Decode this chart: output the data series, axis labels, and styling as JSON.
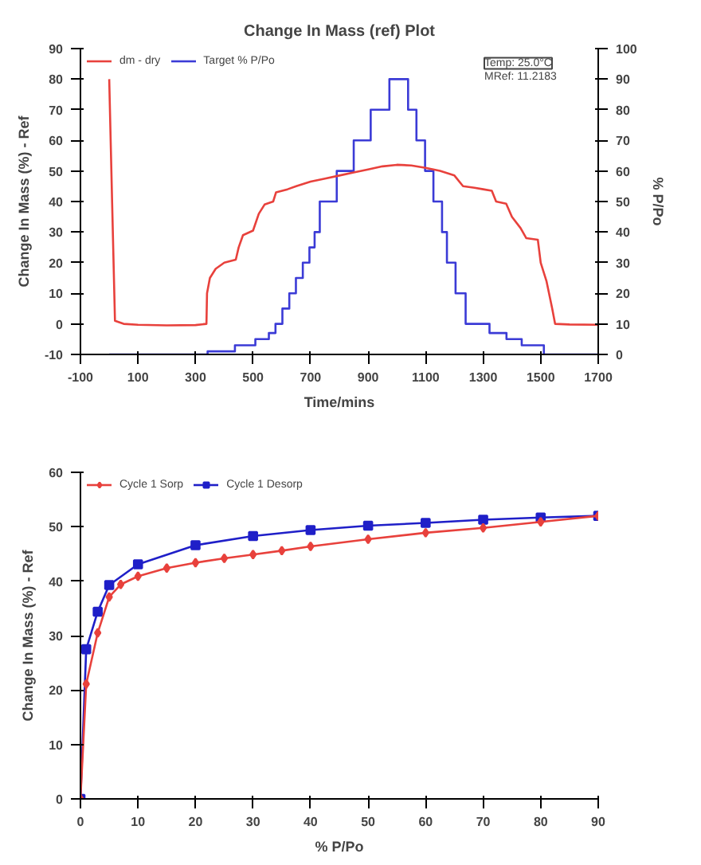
{
  "chart_data": [
    {
      "type": "line",
      "title": "Change In Mass (ref) Plot",
      "xlabel": "Time/mins",
      "ylabel": "Change In Mass (%) - Ref",
      "y2label": "% P/Po",
      "annotations": [
        "Temp: 25.0°C",
        "MRef: 11.2183"
      ],
      "xlim": [
        -100,
        1700
      ],
      "xticks": [
        -100,
        100,
        300,
        500,
        700,
        900,
        1100,
        1300,
        1500,
        1700
      ],
      "ylim": [
        -10,
        90
      ],
      "yticks": [
        -10,
        0,
        10,
        20,
        30,
        40,
        50,
        60,
        70,
        80,
        90
      ],
      "y2lim": [
        0,
        100
      ],
      "y2ticks": [
        0,
        10,
        20,
        30,
        40,
        50,
        60,
        70,
        80,
        90,
        100
      ],
      "grid": false,
      "legend": "top left",
      "series": [
        {
          "name": "dm - dry",
          "color": "#e8413c",
          "type": "line",
          "x": [
            0,
            10,
            20,
            50,
            100,
            200,
            300,
            338,
            340,
            350,
            370,
            400,
            440,
            450,
            465,
            500,
            520,
            540,
            570,
            580,
            620,
            650,
            700,
            750,
            800,
            850,
            900,
            950,
            1000,
            1050,
            1100,
            1150,
            1200,
            1230,
            1270,
            1300,
            1330,
            1345,
            1380,
            1400,
            1430,
            1450,
            1490,
            1500,
            1520,
            1540,
            1550,
            1600,
            1700
          ],
          "values": [
            80,
            40,
            1,
            0,
            -0.3,
            -0.5,
            -0.4,
            0,
            10,
            15,
            18,
            20,
            21,
            25,
            29,
            30.5,
            36,
            39,
            40,
            43,
            44,
            45,
            46.5,
            47.5,
            48.5,
            49.5,
            50.5,
            51.5,
            52,
            51.8,
            51,
            50,
            48.5,
            45,
            44.5,
            44,
            43.5,
            40,
            39.3,
            35,
            31.3,
            28,
            27.5,
            20,
            14,
            5,
            0,
            -0.2,
            -0.3
          ]
        },
        {
          "name": "Target % P/Po",
          "color": "#3b3bd6",
          "type": "step",
          "axis": "y2",
          "x": [
            0,
            342,
            437,
            508,
            555,
            578,
            602,
            626,
            649,
            673,
            696,
            714,
            732,
            791,
            850,
            909,
            974,
            1039,
            1068,
            1098,
            1127,
            1157,
            1174,
            1204,
            1239,
            1322,
            1381,
            1434,
            1511,
            1700
          ],
          "values": [
            0,
            1,
            3,
            5,
            7,
            10,
            15,
            20,
            25,
            30,
            35,
            40,
            50,
            60,
            70,
            80,
            90,
            80,
            70,
            60,
            50,
            40,
            30,
            20,
            10,
            7,
            5,
            3,
            0,
            0
          ]
        }
      ]
    },
    {
      "type": "line",
      "xlabel": "% P/Po",
      "ylabel": "Change In Mass (%) - Ref",
      "xlim": [
        0,
        90
      ],
      "xticks": [
        0,
        10,
        20,
        30,
        40,
        50,
        60,
        70,
        80,
        90
      ],
      "ylim": [
        0,
        60
      ],
      "yticks": [
        0,
        10,
        20,
        30,
        40,
        50,
        60
      ],
      "grid": false,
      "legend": "top left",
      "series": [
        {
          "name": "Cycle 1 Sorp",
          "color": "#e8413c",
          "marker": "diamond",
          "x": [
            0,
            1,
            3,
            5,
            7,
            10,
            15,
            20,
            25,
            30,
            35,
            40,
            50,
            60,
            70,
            80,
            90
          ],
          "values": [
            0,
            21.1,
            30.5,
            37.1,
            39.4,
            40.9,
            42.4,
            43.4,
            44.2,
            44.9,
            45.6,
            46.4,
            47.7,
            48.9,
            49.8,
            50.9,
            52
          ]
        },
        {
          "name": "Cycle 1 Desorp",
          "color": "#1f1fc8",
          "marker": "square",
          "x": [
            0,
            1,
            3,
            5,
            10,
            20,
            30,
            40,
            50,
            60,
            70,
            80,
            90
          ],
          "values": [
            0,
            27.5,
            34.4,
            39.3,
            43.1,
            46.6,
            48.3,
            49.4,
            50.2,
            50.7,
            51.3,
            51.7,
            52
          ]
        }
      ]
    }
  ]
}
